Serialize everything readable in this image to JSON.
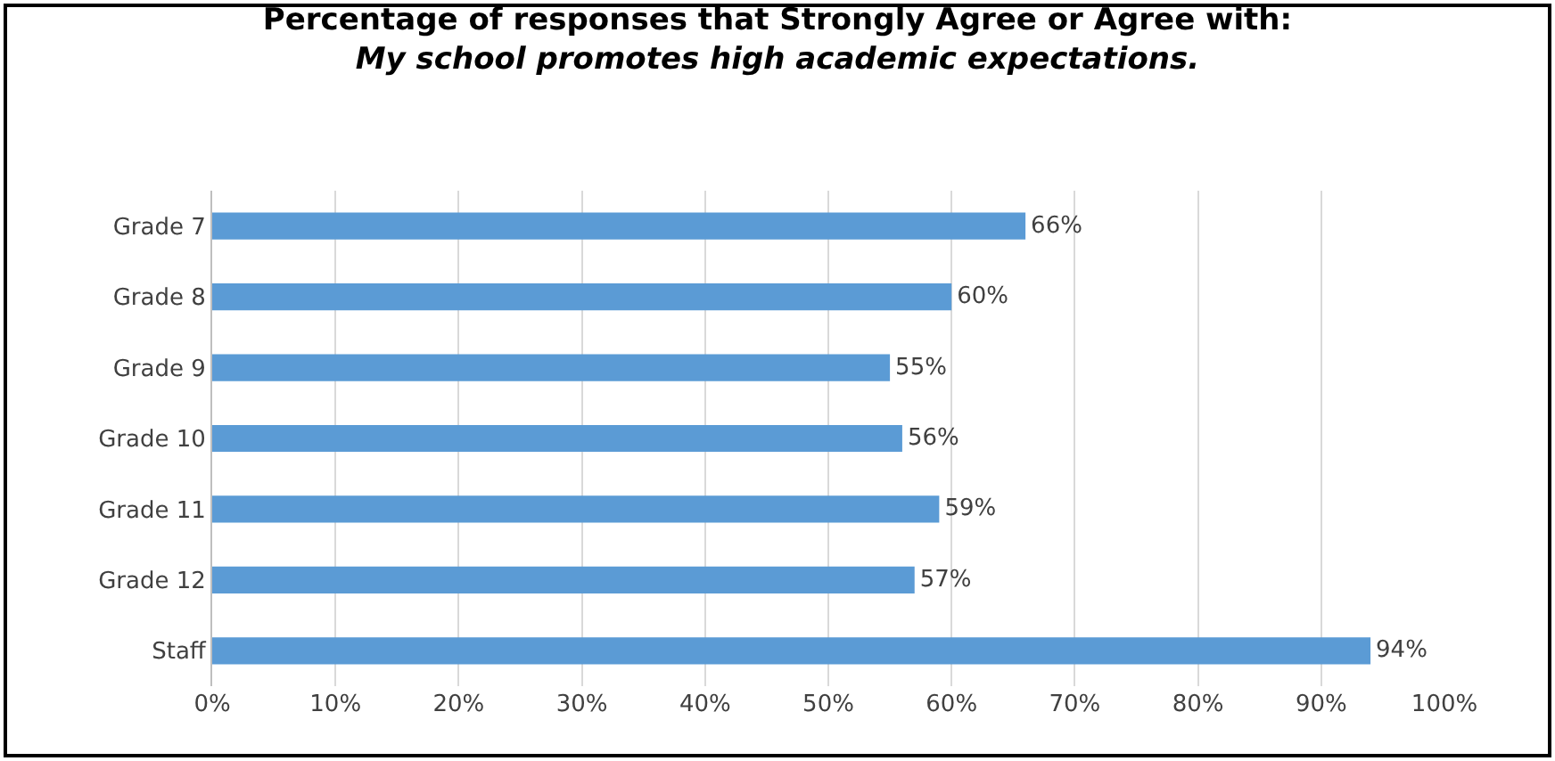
{
  "chart_data": {
    "type": "bar",
    "orientation": "horizontal",
    "title": "Percentage of responses that Strongly Agree or Agree with:",
    "subtitle": "My school promotes high academic expectations.",
    "categories": [
      "Grade 7",
      "Grade 8",
      "Grade 9",
      "Grade 10",
      "Grade 11",
      "Grade 12",
      "Staff"
    ],
    "values": [
      66,
      60,
      55,
      56,
      59,
      57,
      94
    ],
    "value_labels": [
      "66%",
      "60%",
      "55%",
      "56%",
      "59%",
      "57%",
      "94%"
    ],
    "color": "#5b9bd5",
    "xlim": [
      0,
      100
    ],
    "xticks": [
      {
        "value": 0,
        "label": "0%"
      },
      {
        "value": 10,
        "label": "10%"
      },
      {
        "value": 20,
        "label": "20%"
      },
      {
        "value": 30,
        "label": "30%"
      },
      {
        "value": 40,
        "label": "40%"
      },
      {
        "value": 50,
        "label": "50%"
      },
      {
        "value": 60,
        "label": "60%"
      },
      {
        "value": 70,
        "label": "70%"
      },
      {
        "value": 80,
        "label": "80%"
      },
      {
        "value": 90,
        "label": "90%"
      },
      {
        "value": 100,
        "label": "100%"
      }
    ],
    "grid": "x"
  }
}
